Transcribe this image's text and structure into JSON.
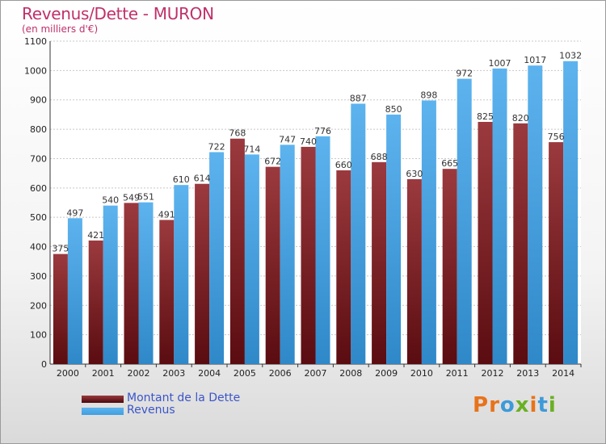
{
  "title": "Revenus/Dette - MURON",
  "subtitle": "(en milliers d'€)",
  "brand": "Proxiti",
  "colors": {
    "dette": "#7a1e22",
    "dette_top": "#9b3a3e",
    "revenus": "#3f9fe0",
    "revenus_top": "#5db3ee",
    "title": "#c0306a",
    "legend_text": "#3b55c9",
    "brand_letters": [
      "#e8731a",
      "#e8731a",
      "#3d9ad9",
      "#6ab023",
      "#e8731a",
      "#3d9ad9",
      "#6ab023"
    ]
  },
  "chart_data": {
    "type": "bar",
    "title": "Revenus/Dette - MURON",
    "subtitle": "(en milliers d'€)",
    "xlabel": "",
    "ylabel": "",
    "ylim": [
      0,
      1100
    ],
    "yticks": [
      0,
      100,
      200,
      300,
      400,
      500,
      600,
      700,
      800,
      900,
      1000,
      1100
    ],
    "grid": true,
    "legend_position": "bottom-left",
    "categories": [
      "2000",
      "2001",
      "2002",
      "2003",
      "2004",
      "2005",
      "2006",
      "2007",
      "2008",
      "2009",
      "2010",
      "2011",
      "2012",
      "2013",
      "2014"
    ],
    "series": [
      {
        "name": "Montant de la Dette",
        "values": [
          375,
          421,
          549,
          491,
          614,
          768,
          672,
          740,
          660,
          688,
          630,
          665,
          825,
          820,
          756
        ]
      },
      {
        "name": "Revenus",
        "values": [
          497,
          540,
          551,
          610,
          722,
          714,
          747,
          776,
          887,
          850,
          898,
          972,
          1007,
          1017,
          1032
        ]
      }
    ]
  }
}
